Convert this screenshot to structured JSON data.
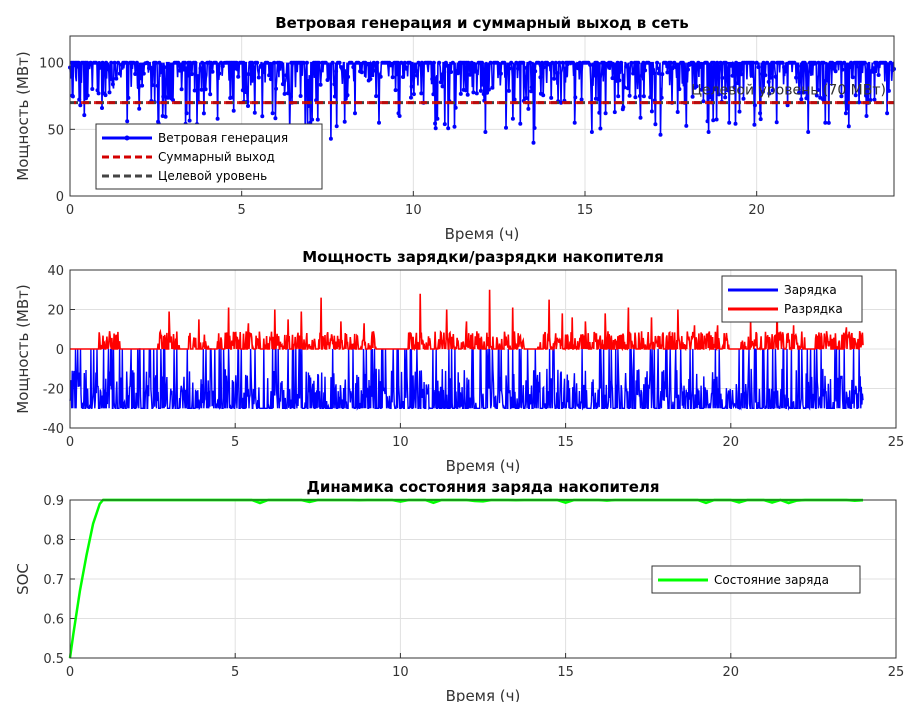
{
  "chart_data": [
    {
      "type": "line",
      "title": "Ветровая генерация и суммарный выход в сеть",
      "xlabel": "Время (ч)",
      "ylabel": "Мощность (МВт)",
      "xlim": [
        0,
        24
      ],
      "ylim": [
        0,
        120
      ],
      "xticks": [
        0,
        5,
        10,
        15,
        20
      ],
      "yticks": [
        0,
        50,
        100
      ],
      "grid": true,
      "legend_position": "bottom-left",
      "annotation": "Целевой уровень (70 МВт)",
      "series": [
        {
          "name": "Ветровая генерация",
          "color": "#0000ff",
          "style": "solid-marker",
          "min": 38,
          "max": 100,
          "typical": 100,
          "dips": [
            [
              0.3,
              68
            ],
            [
              1.1,
              95
            ],
            [
              2.7,
              60
            ],
            [
              3.0,
              72
            ],
            [
              3.4,
              62
            ],
            [
              4.3,
              58
            ],
            [
              5.1,
              78
            ],
            [
              5.9,
              62
            ],
            [
              6.4,
              48
            ],
            [
              7.0,
              55
            ],
            [
              7.6,
              43
            ],
            [
              8.3,
              62
            ],
            [
              9.0,
              55
            ],
            [
              9.6,
              60
            ],
            [
              10.3,
              70
            ],
            [
              10.7,
              58
            ],
            [
              11.2,
              52
            ],
            [
              12.1,
              48
            ],
            [
              12.9,
              58
            ],
            [
              13.5,
              40
            ],
            [
              14.3,
              70
            ],
            [
              14.7,
              55
            ],
            [
              15.2,
              48
            ],
            [
              15.6,
              62
            ],
            [
              16.1,
              65
            ],
            [
              16.6,
              75
            ],
            [
              17.2,
              46
            ],
            [
              17.9,
              70
            ],
            [
              18.6,
              48
            ],
            [
              19.2,
              55
            ],
            [
              20.1,
              62
            ],
            [
              20.9,
              68
            ],
            [
              21.5,
              48
            ],
            [
              22.0,
              55
            ],
            [
              22.6,
              62
            ],
            [
              23.2,
              60
            ],
            [
              23.8,
              62
            ]
          ]
        },
        {
          "name": "Суммарный выход",
          "color": "#d40000",
          "style": "dashed",
          "y": 70
        },
        {
          "name": "Целевой уровень",
          "color": "#444444",
          "style": "dashed",
          "y": 70
        }
      ]
    },
    {
      "type": "line",
      "title": "Мощность зарядки/разрядки накопителя",
      "xlabel": "Время (ч)",
      "ylabel": "Мощность (МВт)",
      "xlim": [
        0,
        25
      ],
      "ylim": [
        -40,
        40
      ],
      "xticks": [
        0,
        5,
        10,
        15,
        20,
        25
      ],
      "yticks": [
        -40,
        -20,
        0,
        20,
        40
      ],
      "grid": true,
      "legend_position": "top-right",
      "series": [
        {
          "name": "Зарядка",
          "color": "#0000ff",
          "min": -30,
          "max": 0
        },
        {
          "name": "Разрядка",
          "color": "#ff0000",
          "min": 0,
          "max": 30,
          "peaks": [
            [
              1.2,
              9
            ],
            [
              3.0,
              19
            ],
            [
              3.9,
              15
            ],
            [
              4.8,
              21
            ],
            [
              5.4,
              13
            ],
            [
              6.2,
              20
            ],
            [
              6.6,
              15
            ],
            [
              7.0,
              19
            ],
            [
              7.6,
              26
            ],
            [
              8.2,
              14
            ],
            [
              8.9,
              13
            ],
            [
              10.6,
              28
            ],
            [
              11.4,
              20
            ],
            [
              12.0,
              14
            ],
            [
              12.7,
              30
            ],
            [
              13.4,
              21
            ],
            [
              14.5,
              25
            ],
            [
              14.9,
              18
            ],
            [
              15.2,
              16
            ],
            [
              15.6,
              14
            ],
            [
              16.2,
              18
            ],
            [
              16.9,
              21
            ],
            [
              17.6,
              16
            ],
            [
              18.4,
              20
            ],
            [
              18.9,
              12
            ],
            [
              19.6,
              12
            ],
            [
              20.6,
              15
            ],
            [
              21.4,
              25
            ],
            [
              21.9,
              12
            ],
            [
              22.9,
              9
            ],
            [
              23.5,
              11
            ],
            [
              23.9,
              9
            ]
          ]
        }
      ]
    },
    {
      "type": "line",
      "title": "Динамика состояния заряда накопителя",
      "xlabel": "Время (ч)",
      "ylabel": "SOC",
      "xlim": [
        0,
        25
      ],
      "ylim": [
        0.5,
        0.9
      ],
      "xticks": [
        0,
        5,
        10,
        15,
        20,
        25
      ],
      "yticks": [
        0.5,
        0.6,
        0.7,
        0.8,
        0.9
      ],
      "grid": true,
      "legend_position": "right",
      "series": [
        {
          "name": "Состояние заряда",
          "color": "#00ff00",
          "x": [
            0,
            0.1,
            0.3,
            0.5,
            0.7,
            0.9,
            1.0,
            24
          ],
          "y": [
            0.5,
            0.56,
            0.67,
            0.76,
            0.84,
            0.89,
            0.9,
            0.9
          ]
        }
      ]
    }
  ]
}
